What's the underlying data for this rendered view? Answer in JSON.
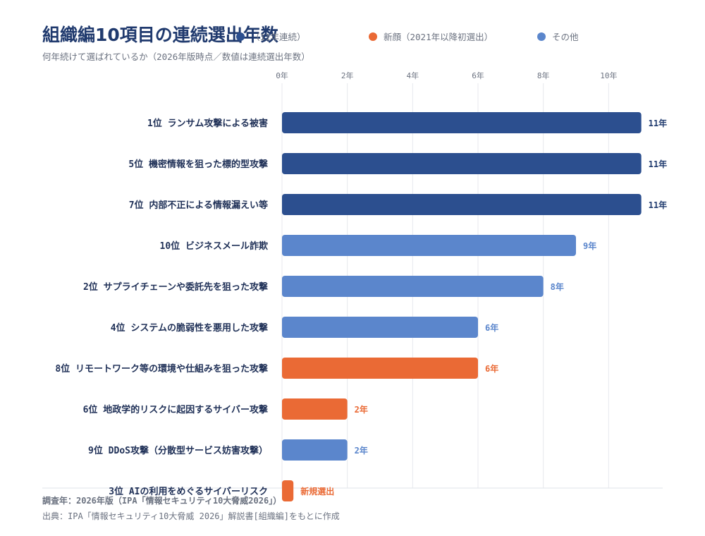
{
  "title": "組織編10項目の連続選出年数",
  "subtitle": "何年続けて選ばれているか（2026年版時点／数値は連続選出年数）",
  "legend": [
    {
      "label": "（11年連続）",
      "color": "#2c4f8f"
    },
    {
      "label": "新顔（2021年以降初選出）",
      "color": "#ea6a35"
    },
    {
      "label": "その他",
      "color": "#5b86cc"
    }
  ],
  "footer": {
    "survey": "調査年：2026年版（IPA「情報セキュリティ10大脅威2026」）",
    "source": "出典：IPA「情報セキュリティ10大脅威 2026」解説書[組織編]をもとに作成"
  },
  "chart_data": {
    "type": "bar",
    "orientation": "horizontal",
    "title": "組織編10項目の連続選出年数",
    "subtitle": "何年続けて選ばれているか（2026年版時点／数値は連続選出年数）",
    "xlim": [
      0,
      12
    ],
    "x_ticks": [
      0,
      2,
      4,
      6,
      8,
      10
    ],
    "x_tick_labels": [
      "0年",
      "2年",
      "4年",
      "6年",
      "8年",
      "10年"
    ],
    "grid": true,
    "legend_position": "top",
    "categories": [
      "1位 ランサム攻撃による被害",
      "5位 機密情報を狙った標的型攻撃",
      "7位 内部不正による情報漏えい等",
      "10位 ビジネスメール詐欺",
      "2位 サプライチェーンや委託先を狙った攻撃",
      "4位 システムの脆弱性を悪用した攻撃",
      "8位 リモートワーク等の環境や仕組みを狙った攻撃",
      "6位 地政学的リスクに起因するサイバー攻撃",
      "9位 DDoS攻撃（分散型サービス妨害攻撃）",
      "3位 AIの利用をめぐるサイバーリスク"
    ],
    "values": [
      11,
      11,
      11,
      9,
      8,
      6,
      6,
      2,
      2,
      0.35
    ],
    "groups": [
      "11年連続",
      "11年連続",
      "11年連続",
      "その他",
      "その他",
      "その他",
      "新顔",
      "新顔",
      "その他",
      "新顔"
    ],
    "data_labels": [
      "11年",
      "11年",
      "11年",
      "9年",
      "8年",
      "6年",
      "6年",
      "2年",
      "2年",
      "新規選出"
    ],
    "colors": {
      "11年連続": "#2c4f8f",
      "新顔": "#ea6a35",
      "その他": "#5b86cc"
    },
    "label_colors": {
      "11年連続": "#1f3a6e",
      "新顔": "#ea6a35",
      "その他": "#5b86cc"
    }
  }
}
